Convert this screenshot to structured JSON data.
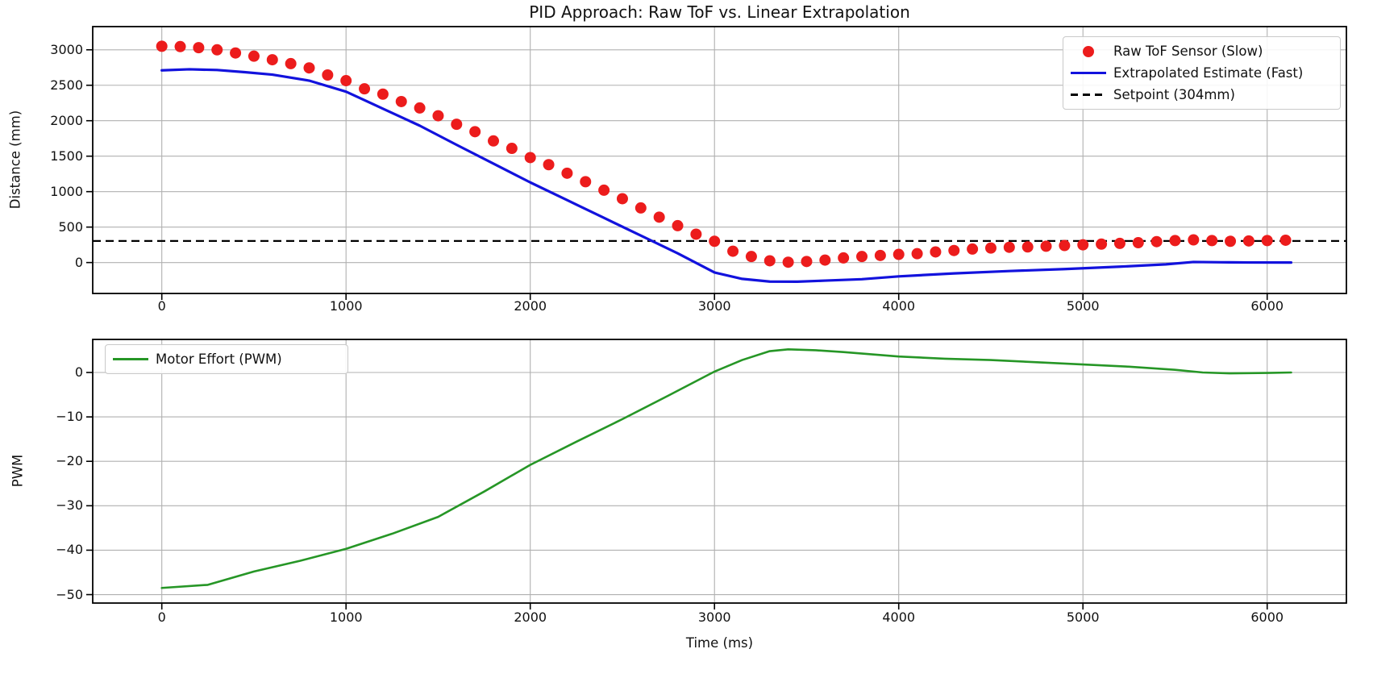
{
  "figure": {
    "title": "PID Approach: Raw ToF vs. Linear Extrapolation",
    "background": "#ffffff",
    "grid_color": "#b0b0b0",
    "spine_color": "#000000",
    "text_color": "#111111"
  },
  "chart_data": [
    {
      "type": "scatter",
      "title": "PID Approach: Raw ToF vs. Linear Extrapolation",
      "xlabel": "",
      "ylabel": "Distance (mm)",
      "xlim": [
        -375,
        6430
      ],
      "ylim": [
        -436,
        3327
      ],
      "grid": true,
      "legend_position": "upper right",
      "xticks": [
        {
          "value": 0,
          "label": "0"
        },
        {
          "value": 1000,
          "label": "1000"
        },
        {
          "value": 2000,
          "label": "2000"
        },
        {
          "value": 3000,
          "label": "3000"
        },
        {
          "value": 4000,
          "label": "4000"
        },
        {
          "value": 5000,
          "label": "5000"
        },
        {
          "value": 6000,
          "label": "6000"
        }
      ],
      "yticks": [
        {
          "value": 0,
          "label": "0"
        },
        {
          "value": 500,
          "label": "500"
        },
        {
          "value": 1000,
          "label": "1000"
        },
        {
          "value": 1500,
          "label": "1500"
        },
        {
          "value": 2000,
          "label": "2000"
        },
        {
          "value": 2500,
          "label": "2500"
        },
        {
          "value": 3000,
          "label": "3000"
        }
      ],
      "series": [
        {
          "name": "Setpoint (304mm)",
          "kind": "hline",
          "color": "#000000",
          "dash": "10 6",
          "width": 2.2,
          "y": 304
        },
        {
          "name": "Extrapolated Estimate (Fast)",
          "kind": "line",
          "color": "#1212dd",
          "width": 3.2,
          "points": [
            [
              0,
              2710
            ],
            [
              150,
              2725
            ],
            [
              300,
              2715
            ],
            [
              450,
              2685
            ],
            [
              600,
              2650
            ],
            [
              800,
              2565
            ],
            [
              1000,
              2410
            ],
            [
              1200,
              2170
            ],
            [
              1400,
              1930
            ],
            [
              1600,
              1660
            ],
            [
              1800,
              1395
            ],
            [
              2000,
              1130
            ],
            [
              2200,
              880
            ],
            [
              2400,
              630
            ],
            [
              2600,
              380
            ],
            [
              2800,
              130
            ],
            [
              3000,
              -140
            ],
            [
              3150,
              -230
            ],
            [
              3300,
              -268
            ],
            [
              3450,
              -270
            ],
            [
              3600,
              -255
            ],
            [
              3800,
              -235
            ],
            [
              4000,
              -195
            ],
            [
              4300,
              -153
            ],
            [
              4600,
              -120
            ],
            [
              4900,
              -92
            ],
            [
              5200,
              -58
            ],
            [
              5450,
              -25
            ],
            [
              5600,
              8
            ],
            [
              5750,
              4
            ],
            [
              5900,
              1
            ],
            [
              6130,
              0
            ]
          ]
        },
        {
          "name": "Raw ToF Sensor (Slow)",
          "kind": "scatter",
          "color": "#ec1c1c",
          "marker_radius": 7,
          "x_start": 0,
          "x_step": 100,
          "values": [
            3050,
            3045,
            3030,
            3000,
            2955,
            2910,
            2860,
            2805,
            2745,
            2645,
            2565,
            2450,
            2375,
            2270,
            2180,
            2070,
            1950,
            1845,
            1715,
            1610,
            1480,
            1380,
            1260,
            1140,
            1020,
            900,
            770,
            640,
            520,
            400,
            300,
            160,
            85,
            25,
            5,
            15,
            35,
            65,
            85,
            100,
            115,
            125,
            150,
            170,
            190,
            205,
            215,
            220,
            230,
            240,
            250,
            260,
            270,
            280,
            295,
            310,
            320,
            310,
            300,
            305,
            310,
            315
          ]
        }
      ]
    },
    {
      "type": "line",
      "title": "",
      "xlabel": "Time (ms)",
      "ylabel": "PWM",
      "xlim": [
        -375,
        6430
      ],
      "ylim": [
        -51.9,
        7.44
      ],
      "grid": true,
      "legend_position": "upper left",
      "xticks": [
        {
          "value": 0,
          "label": "0"
        },
        {
          "value": 1000,
          "label": "1000"
        },
        {
          "value": 2000,
          "label": "2000"
        },
        {
          "value": 3000,
          "label": "3000"
        },
        {
          "value": 4000,
          "label": "4000"
        },
        {
          "value": 5000,
          "label": "5000"
        },
        {
          "value": 6000,
          "label": "6000"
        }
      ],
      "yticks": [
        {
          "value": 0,
          "label": "0"
        },
        {
          "value": -10,
          "label": "−10"
        },
        {
          "value": -20,
          "label": "−20"
        },
        {
          "value": -30,
          "label": "−30"
        },
        {
          "value": -40,
          "label": "−40"
        },
        {
          "value": -50,
          "label": "−50"
        }
      ],
      "series": [
        {
          "name": "Motor Effort (PWM)",
          "kind": "line",
          "color": "#269626",
          "width": 2.6,
          "points": [
            [
              0,
              -48.5
            ],
            [
              250,
              -47.8
            ],
            [
              500,
              -44.8
            ],
            [
              750,
              -42.4
            ],
            [
              1000,
              -39.7
            ],
            [
              1250,
              -36.3
            ],
            [
              1500,
              -32.5
            ],
            [
              1750,
              -26.8
            ],
            [
              2000,
              -20.8
            ],
            [
              2250,
              -15.6
            ],
            [
              2500,
              -10.5
            ],
            [
              2750,
              -5.2
            ],
            [
              3000,
              0.2
            ],
            [
              3150,
              2.8
            ],
            [
              3300,
              4.8
            ],
            [
              3400,
              5.2
            ],
            [
              3550,
              5.0
            ],
            [
              3700,
              4.6
            ],
            [
              4000,
              3.6
            ],
            [
              4250,
              3.1
            ],
            [
              4500,
              2.8
            ],
            [
              4750,
              2.3
            ],
            [
              5000,
              1.8
            ],
            [
              5250,
              1.3
            ],
            [
              5500,
              0.6
            ],
            [
              5650,
              0.0
            ],
            [
              5800,
              -0.2
            ],
            [
              6000,
              -0.1
            ],
            [
              6130,
              0
            ]
          ]
        }
      ]
    }
  ]
}
